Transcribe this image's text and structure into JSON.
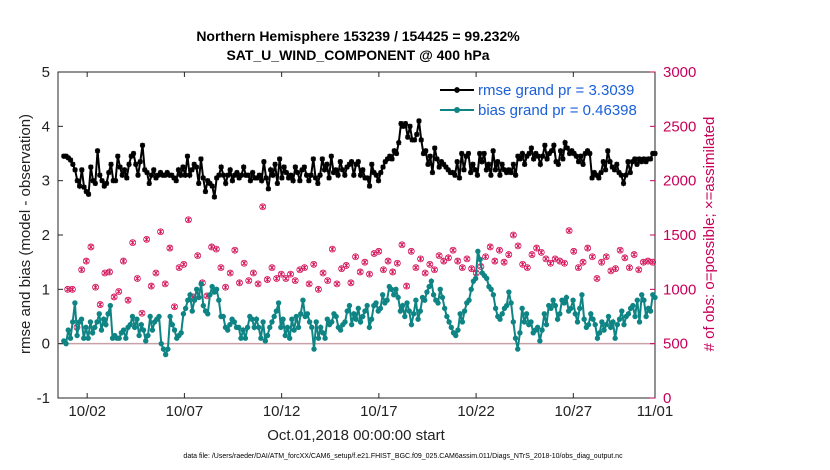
{
  "chart_data": {
    "type": "line",
    "title": "Northern Hemisphere 153239 / 154425 = 99.232%",
    "subtitle": "SAT_U_WIND_COMPONENT @ 400 hPa",
    "xlabel": "Oct.01,2018 00:00:00 start",
    "ylabel": "rmse and bias (model - observation)",
    "y2label": "# of obs: o=possible; ×=assimilated",
    "footer": "data file: /Users/raeder/DAI/ATM_forcXX/CAM6_setup/f.e21.FHIST_BGC.f09_025.CAM6assim.011/Diags_NTrS_2018-10/obs_diag_output.nc",
    "xlim": [
      0.5,
      31.2
    ],
    "ylim": [
      -1,
      5
    ],
    "y2lim": [
      0,
      3000
    ],
    "x_ticks": [
      2,
      7,
      12,
      17,
      22,
      27,
      32
    ],
    "x_tick_labels": [
      "10/02",
      "10/07",
      "10/12",
      "10/17",
      "10/22",
      "10/27",
      "11/01"
    ],
    "y_ticks": [
      -1,
      0,
      1,
      2,
      3,
      4,
      5
    ],
    "y2_ticks": [
      0,
      500,
      1000,
      1500,
      2000,
      2500,
      3000
    ],
    "zero_line": 0,
    "legend_position": "top-right",
    "colors": {
      "rmse": "#000000",
      "bias": "#0f8484",
      "obs": "#d4145a",
      "legend_text": "#1a5fd9",
      "zero": "#c8a0a8"
    },
    "series": [
      {
        "name": "rmse grand pr = 3.3039",
        "axis": "left",
        "values": [
          3.45,
          3.45,
          3.42,
          3.38,
          3.3,
          3.2,
          3.0,
          2.9,
          3.2,
          2.88,
          2.8,
          2.75,
          3.25,
          3.0,
          2.95,
          3.55,
          3.1,
          3.0,
          2.9,
          2.95,
          3.15,
          3.3,
          3.0,
          3.0,
          3.45,
          3.25,
          3.1,
          3.2,
          3.05,
          3.3,
          3.45,
          3.5,
          3.3,
          3.1,
          3.35,
          3.65,
          3.2,
          3.15,
          2.95,
          3.1,
          3.2,
          3.05,
          3.1,
          3.15,
          3.1,
          3.1,
          3.15,
          3.1,
          3.1,
          3.05,
          3.0,
          3.2,
          3.1,
          3.25,
          3.1,
          3.45,
          3.1,
          3.2,
          3.3,
          3.25,
          2.95,
          3.4,
          3.05,
          2.8,
          3.0,
          2.95,
          2.9,
          2.7,
          3.05,
          3.1,
          3.25,
          3.1,
          2.95,
          3.1,
          3.2,
          3.0,
          3.1,
          3.15,
          3.05,
          3.1,
          3.25,
          3.1,
          3.1,
          3.0,
          3.15,
          3.05,
          3.05,
          3.1,
          3.0,
          3.35,
          3.05,
          2.85,
          3.2,
          3.1,
          3.3,
          2.95,
          3.4,
          3.05,
          3.25,
          3.15,
          3.05,
          3.1,
          3.0,
          3.25,
          3.15,
          3.0,
          3.2,
          3.25,
          3.1,
          3.0,
          3.1,
          3.4,
          3.05,
          2.95,
          3.1,
          3.4,
          3.2,
          3.3,
          3.05,
          3.45,
          3.15,
          3.2,
          3.1,
          3.35,
          3.2,
          3.1,
          3.25,
          3.3,
          3.35,
          3.1,
          3.3,
          3.35,
          3.1,
          3.2,
          3.05,
          3.05,
          2.9,
          3.3,
          3.15,
          3.1,
          3.0,
          3.15,
          3.25,
          3.35,
          3.4,
          3.45,
          3.4,
          3.55,
          3.5,
          3.7,
          4.05,
          4.0,
          4.05,
          3.8,
          4.0,
          3.75,
          3.75,
          3.85,
          4.1,
          3.75,
          3.5,
          3.55,
          3.3,
          3.45,
          3.15,
          3.6,
          3.4,
          3.25,
          3.35,
          3.3,
          3.25,
          3.2,
          3.15,
          3.15,
          3.1,
          3.35,
          3.05,
          3.5,
          3.2,
          3.45,
          3.5,
          3.15,
          3.3,
          3.2,
          3.1,
          3.5,
          3.35,
          3.5,
          3.2,
          3.3,
          3.1,
          3.55,
          3.2,
          3.35,
          3.1,
          3.3,
          3.2,
          3.15,
          3.2,
          3.15,
          3.3,
          3.1,
          3.45,
          3.4,
          3.5,
          3.3,
          3.45,
          3.5,
          3.6,
          3.4,
          3.5,
          3.45,
          3.3,
          3.45,
          3.65,
          3.4,
          3.5,
          3.55,
          3.65,
          3.35,
          3.3,
          3.55,
          3.4,
          3.7,
          3.6,
          3.5,
          3.55,
          3.5,
          3.45,
          3.35,
          3.45,
          3.3,
          3.5,
          3.55,
          3.5,
          3.05,
          3.15,
          3.1,
          3.05,
          3.15,
          3.35,
          3.2,
          3.55,
          3.35,
          3.25,
          3.2,
          3.3,
          3.15,
          3.1,
          2.95,
          3.1,
          3.35,
          3.15,
          3.35,
          3.4,
          3.3,
          3.4,
          3.35,
          3.4,
          3.35,
          3.4,
          3.4,
          3.5,
          3.5
        ]
      },
      {
        "name": "bias grand pr = 0.46398",
        "axis": "left",
        "values": [
          0.05,
          0.0,
          0.25,
          0.1,
          0.4,
          0.75,
          0.15,
          0.4,
          0.45,
          0.1,
          0.3,
          0.1,
          0.4,
          0.2,
          0.3,
          0.4,
          0.55,
          0.25,
          0.45,
          0.35,
          0.55,
          0.7,
          0.1,
          0.15,
          0.1,
          0.1,
          0.2,
          0.25,
          0.1,
          0.3,
          0.35,
          0.5,
          0.3,
          0.45,
          0.15,
          0.35,
          0.25,
          0.05,
          0.15,
          0.5,
          0.25,
          0.4,
          0.45,
          0.5,
          0.0,
          -0.1,
          -0.2,
          -0.1,
          0.5,
          0.35,
          0.25,
          0.1,
          0.15,
          0.2,
          0.55,
          0.65,
          0.8,
          0.9,
          0.6,
          0.8,
          1.0,
          0.85,
          1.1,
          0.7,
          0.6,
          0.55,
          0.9,
          1.05,
          0.95,
          1.0,
          0.8,
          0.5,
          0.5,
          0.3,
          0.25,
          0.35,
          0.45,
          0.4,
          0.3,
          0.3,
          0.1,
          0.25,
          0.1,
          0.3,
          0.5,
          0.45,
          0.3,
          0.45,
          0.3,
          0.1,
          0.4,
          0.05,
          0.15,
          0.3,
          0.4,
          0.5,
          0.6,
          0.75,
          0.3,
          0.45,
          0.15,
          0.3,
          0.1,
          0.45,
          0.25,
          0.5,
          0.3,
          0.55,
          0.8,
          0.5,
          0.55,
          0.4,
          0.3,
          -0.1,
          0.4,
          0.1,
          0.3,
          0.2,
          0.1,
          0.45,
          0.35,
          0.4,
          0.55,
          0.5,
          0.3,
          0.25,
          0.35,
          0.4,
          0.6,
          0.7,
          0.35,
          0.55,
          0.45,
          0.65,
          0.4,
          0.5,
          0.6,
          0.7,
          0.3,
          0.45,
          0.7,
          0.75,
          0.6,
          0.65,
          0.9,
          0.75,
          0.8,
          1.05,
          1.0,
          0.9,
          1.0,
          0.85,
          0.6,
          0.7,
          0.5,
          0.75,
          0.6,
          0.35,
          0.55,
          0.8,
          0.45,
          0.6,
          0.85,
          0.8,
          0.95,
          1.05,
          1.15,
          0.9,
          0.8,
          0.75,
          1.0,
          0.85,
          0.65,
          0.5,
          0.4,
          0.3,
          0.2,
          0.15,
          0.25,
          0.55,
          0.4,
          0.6,
          0.75,
          0.8,
          1.0,
          1.15,
          1.2,
          1.7,
          1.55,
          1.3,
          1.25,
          1.2,
          1.05,
          1.0,
          0.9,
          0.65,
          0.5,
          0.45,
          0.55,
          0.65,
          0.7,
          0.95,
          0.75,
          0.4,
          0.1,
          -0.1,
          0.2,
          0.65,
          0.4,
          0.55,
          0.35,
          0.4,
          0.2,
          0.25,
          0.3,
          0.05,
          0.25,
          0.55,
          0.35,
          0.7,
          0.65,
          0.8,
          0.7,
          0.45,
          0.55,
          0.8,
          0.75,
          0.85,
          0.6,
          0.65,
          0.8,
          0.55,
          0.4,
          0.65,
          0.9,
          0.45,
          0.3,
          0.35,
          0.55,
          0.45,
          0.35,
          0.1,
          0.2,
          0.4,
          0.25,
          0.35,
          0.5,
          0.3,
          0.4,
          0.1,
          0.35,
          0.45,
          0.6,
          0.35,
          0.5,
          0.55,
          0.65,
          0.7,
          0.5,
          0.8,
          0.4,
          0.9,
          0.8,
          0.5,
          0.65,
          0.6,
          0.9,
          0.85
        ]
      }
    ],
    "obs_counts_possible": [
      1000,
      1000,
      1000,
      700,
      650,
      600,
      1180,
      1210,
      1260,
      1630,
      1390,
      1180,
      1020,
      920,
      860,
      900,
      1150,
      1370,
      1160,
      1520,
      930,
      900,
      980,
      830,
      1260,
      770,
      900,
      880,
      1430,
      980,
      1100,
      1470,
      780,
      1430,
      1460,
      760,
      1030,
      1010,
      1150,
      1230,
      1530,
      1060,
      1050,
      1140,
      1380,
      1270,
      840,
      1480,
      1200,
      1150,
      1230,
      980,
      1640,
      1170,
      930,
      1080,
      1310,
      1080,
      1060,
      1280,
      940,
      1230,
      1390,
      1160,
      1370,
      1680,
      1200,
      1040,
      1020,
      1230,
      1150,
      1280,
      1360,
      1120,
      1060,
      1020,
      1240,
      1000,
      1080,
      1280,
      1150,
      1370,
      1050,
      1300,
      1760,
      1310,
      1090,
      1000,
      1200,
      1000,
      1100,
      1060,
      1140,
      1320,
      1100,
      1220,
      1140,
      1260,
      1080,
      1400,
      1180,
      1450,
      1200,
      1100,
      1050,
      1300,
      1230,
      1120,
      1000,
      1020,
      1150,
      1260,
      1080,
      1200,
      1370,
      1250,
      1050,
      1330,
      1190,
      1110,
      1220,
      1390,
      1060,
      1190,
      1300,
      1380,
      1160,
      1220,
      1250,
      1510,
      1140,
      1180,
      1330,
      1150,
      1350,
      1290,
      1180,
      1480,
      1260,
      1350,
      1160,
      1200,
      1240,
      1290,
      1410,
      1170,
      1030,
      1260,
      1350,
      1230,
      1200,
      1140,
      1280,
      1320,
      1150,
      1380,
      1230,
      1270,
      1180,
      1260,
      1310,
      1180,
      1260,
      1220,
      1290,
      1410,
      1360,
      1230,
      1260,
      1310,
      1200,
      1360,
      1280,
      1210,
      1190,
      1270,
      1150,
      1280,
      1210,
      1180,
      1300,
      1240,
      1390,
      1530,
      1260,
      1470,
      1360,
      1210,
      1250,
      1360,
      1320,
      1220,
      1500,
      1260,
      1400,
      1280,
      1230,
      1330,
      1200,
      1140,
      1320,
      1260,
      1380,
      1220,
      1340,
      1180,
      1280,
      1320,
      1240,
      1160,
      1280,
      1350,
      1260,
      1220,
      1240,
      1300,
      1540,
      1250,
      1350,
      1260,
      1200,
      1300,
      1250,
      1180,
      1380,
      1220,
      1300,
      1260,
      1100,
      1320,
      1250,
      1420,
      1300,
      1240,
      1170,
      1300,
      1190,
      1260,
      1360,
      1230,
      1290,
      1150,
      1200,
      1260,
      1320,
      1220,
      1180,
      1300,
      1250,
      1140,
      1260,
      1330,
      1250,
      1100
    ],
    "obs_counts_assimilated": [
      1000,
      1000,
      1000,
      700,
      650,
      600,
      1180,
      1210,
      1260,
      1630,
      1390,
      1180,
      1020,
      920,
      860,
      900,
      1150,
      1370,
      1160,
      1520,
      930,
      900,
      980,
      830,
      1260,
      770,
      900,
      880,
      1430,
      980,
      1100,
      1470,
      780,
      1430,
      1460,
      760,
      1030,
      1010,
      1150,
      1230,
      1530,
      1060,
      1050,
      1140,
      1380,
      1270,
      840,
      1480,
      1200,
      1150,
      1230,
      980,
      1640,
      1170,
      930,
      1080,
      1310,
      1080,
      1060,
      1280,
      940,
      1230,
      1390,
      1160,
      1370,
      1680,
      1200,
      1040,
      1020,
      1230,
      1150,
      1280,
      1360,
      1120,
      1060,
      1020,
      1240,
      1000,
      1080,
      1280,
      1150,
      1370,
      1050,
      1300,
      1760,
      1310,
      1090,
      1000,
      1200,
      1000,
      1100,
      1060,
      1140,
      1320,
      1100,
      1220,
      1140,
      1260,
      1080,
      1400,
      1180,
      1450,
      1200,
      1100,
      1050,
      1300,
      1230,
      1120,
      1000,
      1020,
      1150,
      1260,
      1080,
      1200,
      1370,
      1250,
      1050,
      1330,
      1190,
      1110,
      1220,
      1390,
      1060,
      1190,
      1300,
      1380,
      1160,
      1220,
      1250,
      1510,
      1140,
      1180,
      1330,
      1150,
      1350,
      1290,
      1180,
      1480,
      1260,
      1350,
      1160,
      1200,
      1240,
      1290,
      1410,
      1170,
      1030,
      1260,
      1350,
      1230,
      1200,
      1140,
      1280,
      1320,
      1150,
      1380,
      1230,
      1270,
      1180,
      1260,
      1310,
      1180,
      1260,
      1220,
      1290,
      1410,
      1360,
      1230,
      1260,
      1310,
      1200,
      1360,
      1280,
      1210,
      1190,
      1270,
      1150,
      1280,
      1210,
      1180,
      1300,
      1240,
      1390,
      1530,
      1260,
      1470,
      1360,
      1210,
      1250,
      1360,
      1320,
      1220,
      1500,
      1260,
      1400,
      1280,
      1230,
      1330,
      1200,
      1140,
      1320,
      1260,
      1380,
      1220,
      1340,
      1180,
      1280,
      1320,
      1240,
      1160,
      1280,
      1350,
      1260,
      1220,
      1240,
      1300,
      1540,
      1250,
      1350,
      1260,
      1200,
      1300,
      1250,
      1180,
      1380,
      1220,
      1300,
      1260,
      1100,
      1320,
      1250,
      1420,
      1300,
      1240,
      1170,
      1300,
      1190,
      1260,
      1360,
      1230,
      1290,
      1150,
      1200,
      1260,
      1320,
      1220,
      1180,
      1300,
      1250,
      1140,
      1260,
      1330,
      1250,
      1100
    ]
  }
}
